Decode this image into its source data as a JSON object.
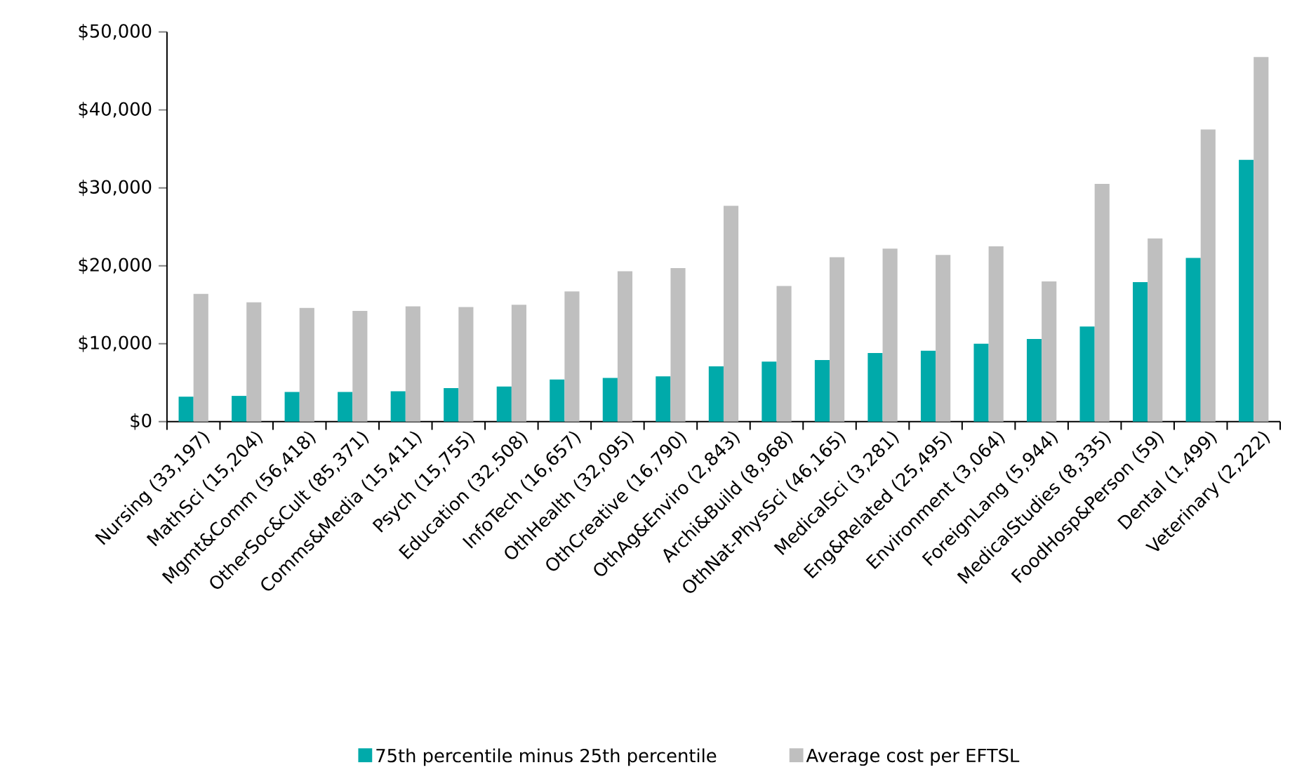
{
  "chart_data": {
    "type": "bar",
    "categories": [
      "Nursing (33,197)",
      "MathSci (15,204)",
      "Mgmt&Comm (56,418)",
      "OtherSoc&Cult (85,371)",
      "Comms&Media (15,411)",
      "Psych (15,755)",
      "Education (32,508)",
      "InfoTech (16,657)",
      "OthHealth (32,095)",
      "OthCreative (16,790)",
      "OthAg&Enviro (2,843)",
      "Archi&Build (8,968)",
      "OthNat-PhysSci (46,165)",
      "MedicalSci (3,281)",
      "Eng&Related (25,495)",
      "Environment (3,064)",
      "ForeignLang (5,944)",
      "MedicalStudies (8,335)",
      "FoodHosp&Person (59)",
      "Dental (1,499)",
      "Veterinary (2,222)"
    ],
    "series": [
      {
        "name": "75th percentile minus 25th percentile",
        "color": "#00aaaa",
        "values": [
          3200,
          3300,
          3800,
          3800,
          3900,
          4300,
          4500,
          5400,
          5600,
          5800,
          7100,
          7700,
          7900,
          8800,
          9100,
          10000,
          10600,
          12200,
          17900,
          21000,
          33600
        ]
      },
      {
        "name": "Average cost per EFTSL",
        "color": "#bfbfbf",
        "values": [
          16400,
          15300,
          14600,
          14200,
          14800,
          14700,
          15000,
          16700,
          19300,
          19700,
          27700,
          17400,
          21100,
          22200,
          21400,
          22500,
          18000,
          30500,
          23500,
          37500,
          46800
        ]
      }
    ],
    "ylim": [
      0,
      50000
    ],
    "yticks": [
      {
        "value": 0,
        "label": "$0"
      },
      {
        "value": 10000,
        "label": "$10,000"
      },
      {
        "value": 20000,
        "label": "$20,000"
      },
      {
        "value": 30000,
        "label": "$30,000"
      },
      {
        "value": 40000,
        "label": "$40,000"
      },
      {
        "value": 50000,
        "label": "$50,000"
      }
    ],
    "grid": false,
    "legend": "bottom"
  }
}
